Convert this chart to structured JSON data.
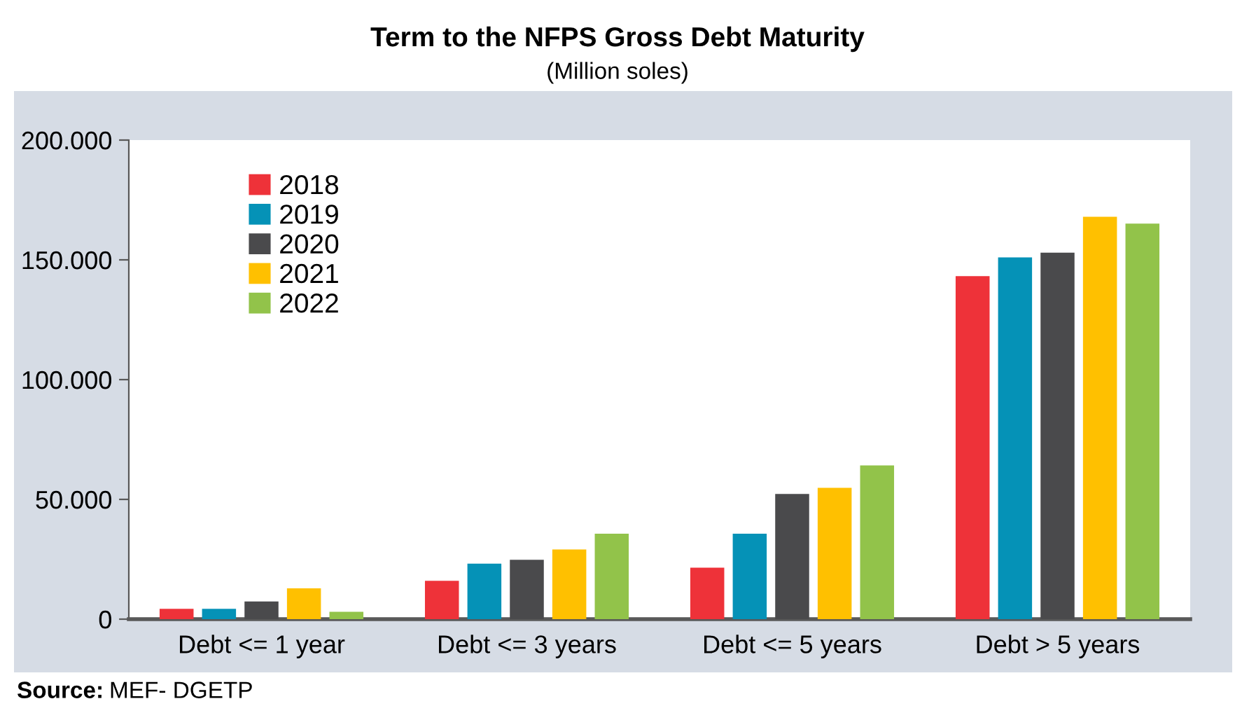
{
  "chart_data": {
    "type": "bar",
    "title": "Term to the NFPS Gross Debt Maturity",
    "subtitle": "(Million soles)",
    "categories": [
      "Debt <= 1 year",
      "Debt <= 3 years",
      "Debt <= 5 years",
      "Debt > 5 years"
    ],
    "series": [
      {
        "name": "2018",
        "color": "#ee3239",
        "values": [
          4300,
          16000,
          21500,
          143200
        ]
      },
      {
        "name": "2019",
        "color": "#0592b7",
        "values": [
          4300,
          23200,
          35700,
          151000
        ]
      },
      {
        "name": "2020",
        "color": "#4a4a4c",
        "values": [
          7400,
          24800,
          52300,
          153000
        ]
      },
      {
        "name": "2021",
        "color": "#ffc000",
        "values": [
          12900,
          29100,
          54800,
          168000
        ]
      },
      {
        "name": "2022",
        "color": "#92c34a",
        "values": [
          3100,
          35700,
          64200,
          165100
        ]
      }
    ],
    "ylim": [
      0,
      200000
    ],
    "yticks": [
      {
        "value": 0,
        "label": "0"
      },
      {
        "value": 50000,
        "label": "50.000"
      },
      {
        "value": 100000,
        "label": "100.000"
      },
      {
        "value": 150000,
        "label": "150.000"
      },
      {
        "value": 200000,
        "label": "200.000"
      }
    ],
    "grid": false,
    "legend": "top left",
    "annotations": [
      "Source: MEF- DGETP"
    ]
  }
}
